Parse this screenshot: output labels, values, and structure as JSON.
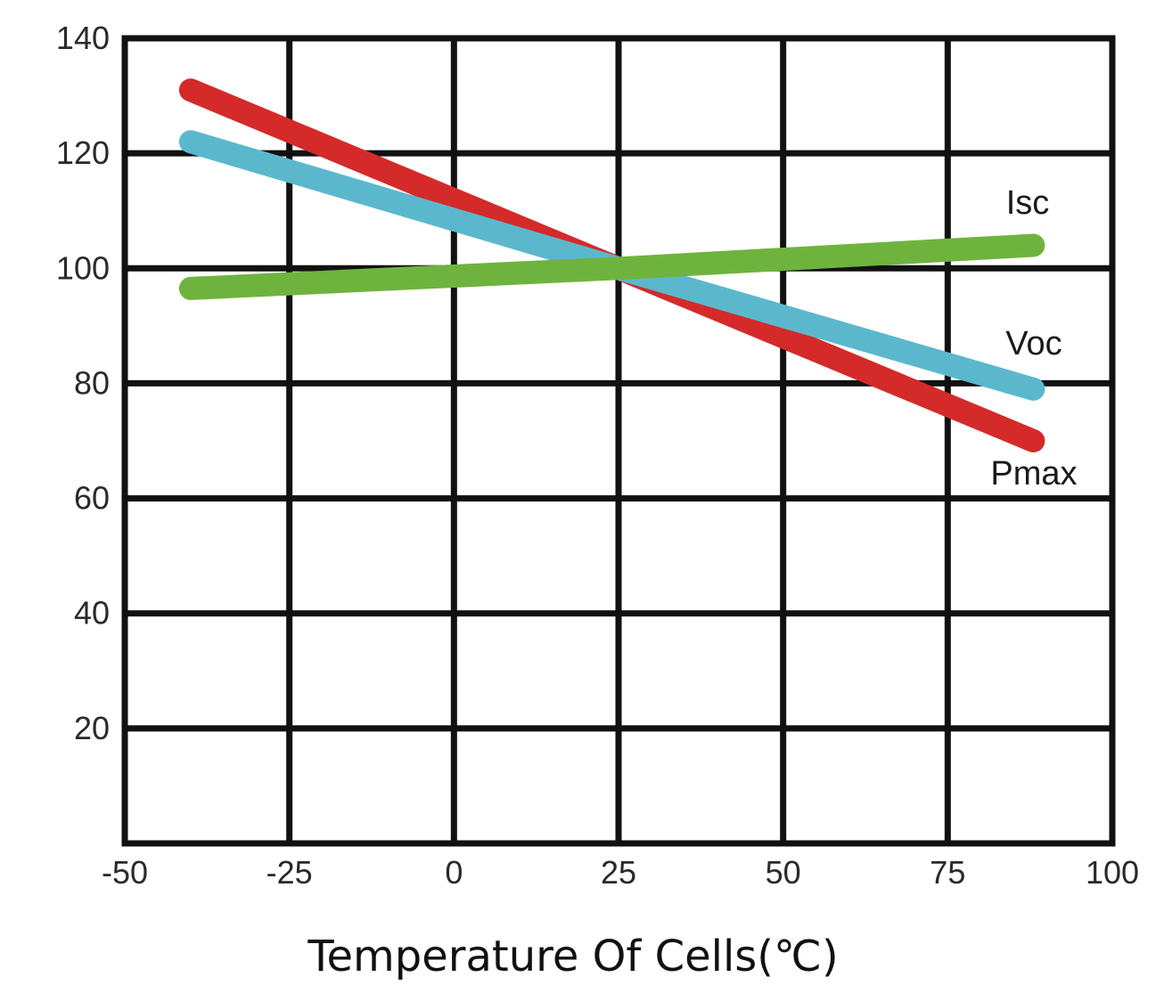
{
  "chart_data": {
    "type": "line",
    "title": "",
    "xlabel": "Temperature Of Cells(℃)",
    "ylabel": "",
    "xlim": [
      -50,
      100
    ],
    "ylim": [
      0,
      140
    ],
    "x_ticks": [
      -50,
      -25,
      0,
      25,
      50,
      75,
      100
    ],
    "y_ticks": [
      20,
      40,
      60,
      80,
      100,
      120,
      140
    ],
    "grid": true,
    "series": [
      {
        "name": "Pmax",
        "color": "#d42a2a",
        "points": [
          [
            -40,
            131
          ],
          [
            25,
            100
          ],
          [
            88,
            70
          ]
        ]
      },
      {
        "name": "Voc",
        "color": "#5bb8cc",
        "points": [
          [
            -40,
            122
          ],
          [
            25,
            100
          ],
          [
            88,
            79
          ]
        ]
      },
      {
        "name": "Isc",
        "color": "#6fb33f",
        "points": [
          [
            -40,
            96.5
          ],
          [
            25,
            100
          ],
          [
            88,
            104
          ]
        ]
      }
    ]
  }
}
